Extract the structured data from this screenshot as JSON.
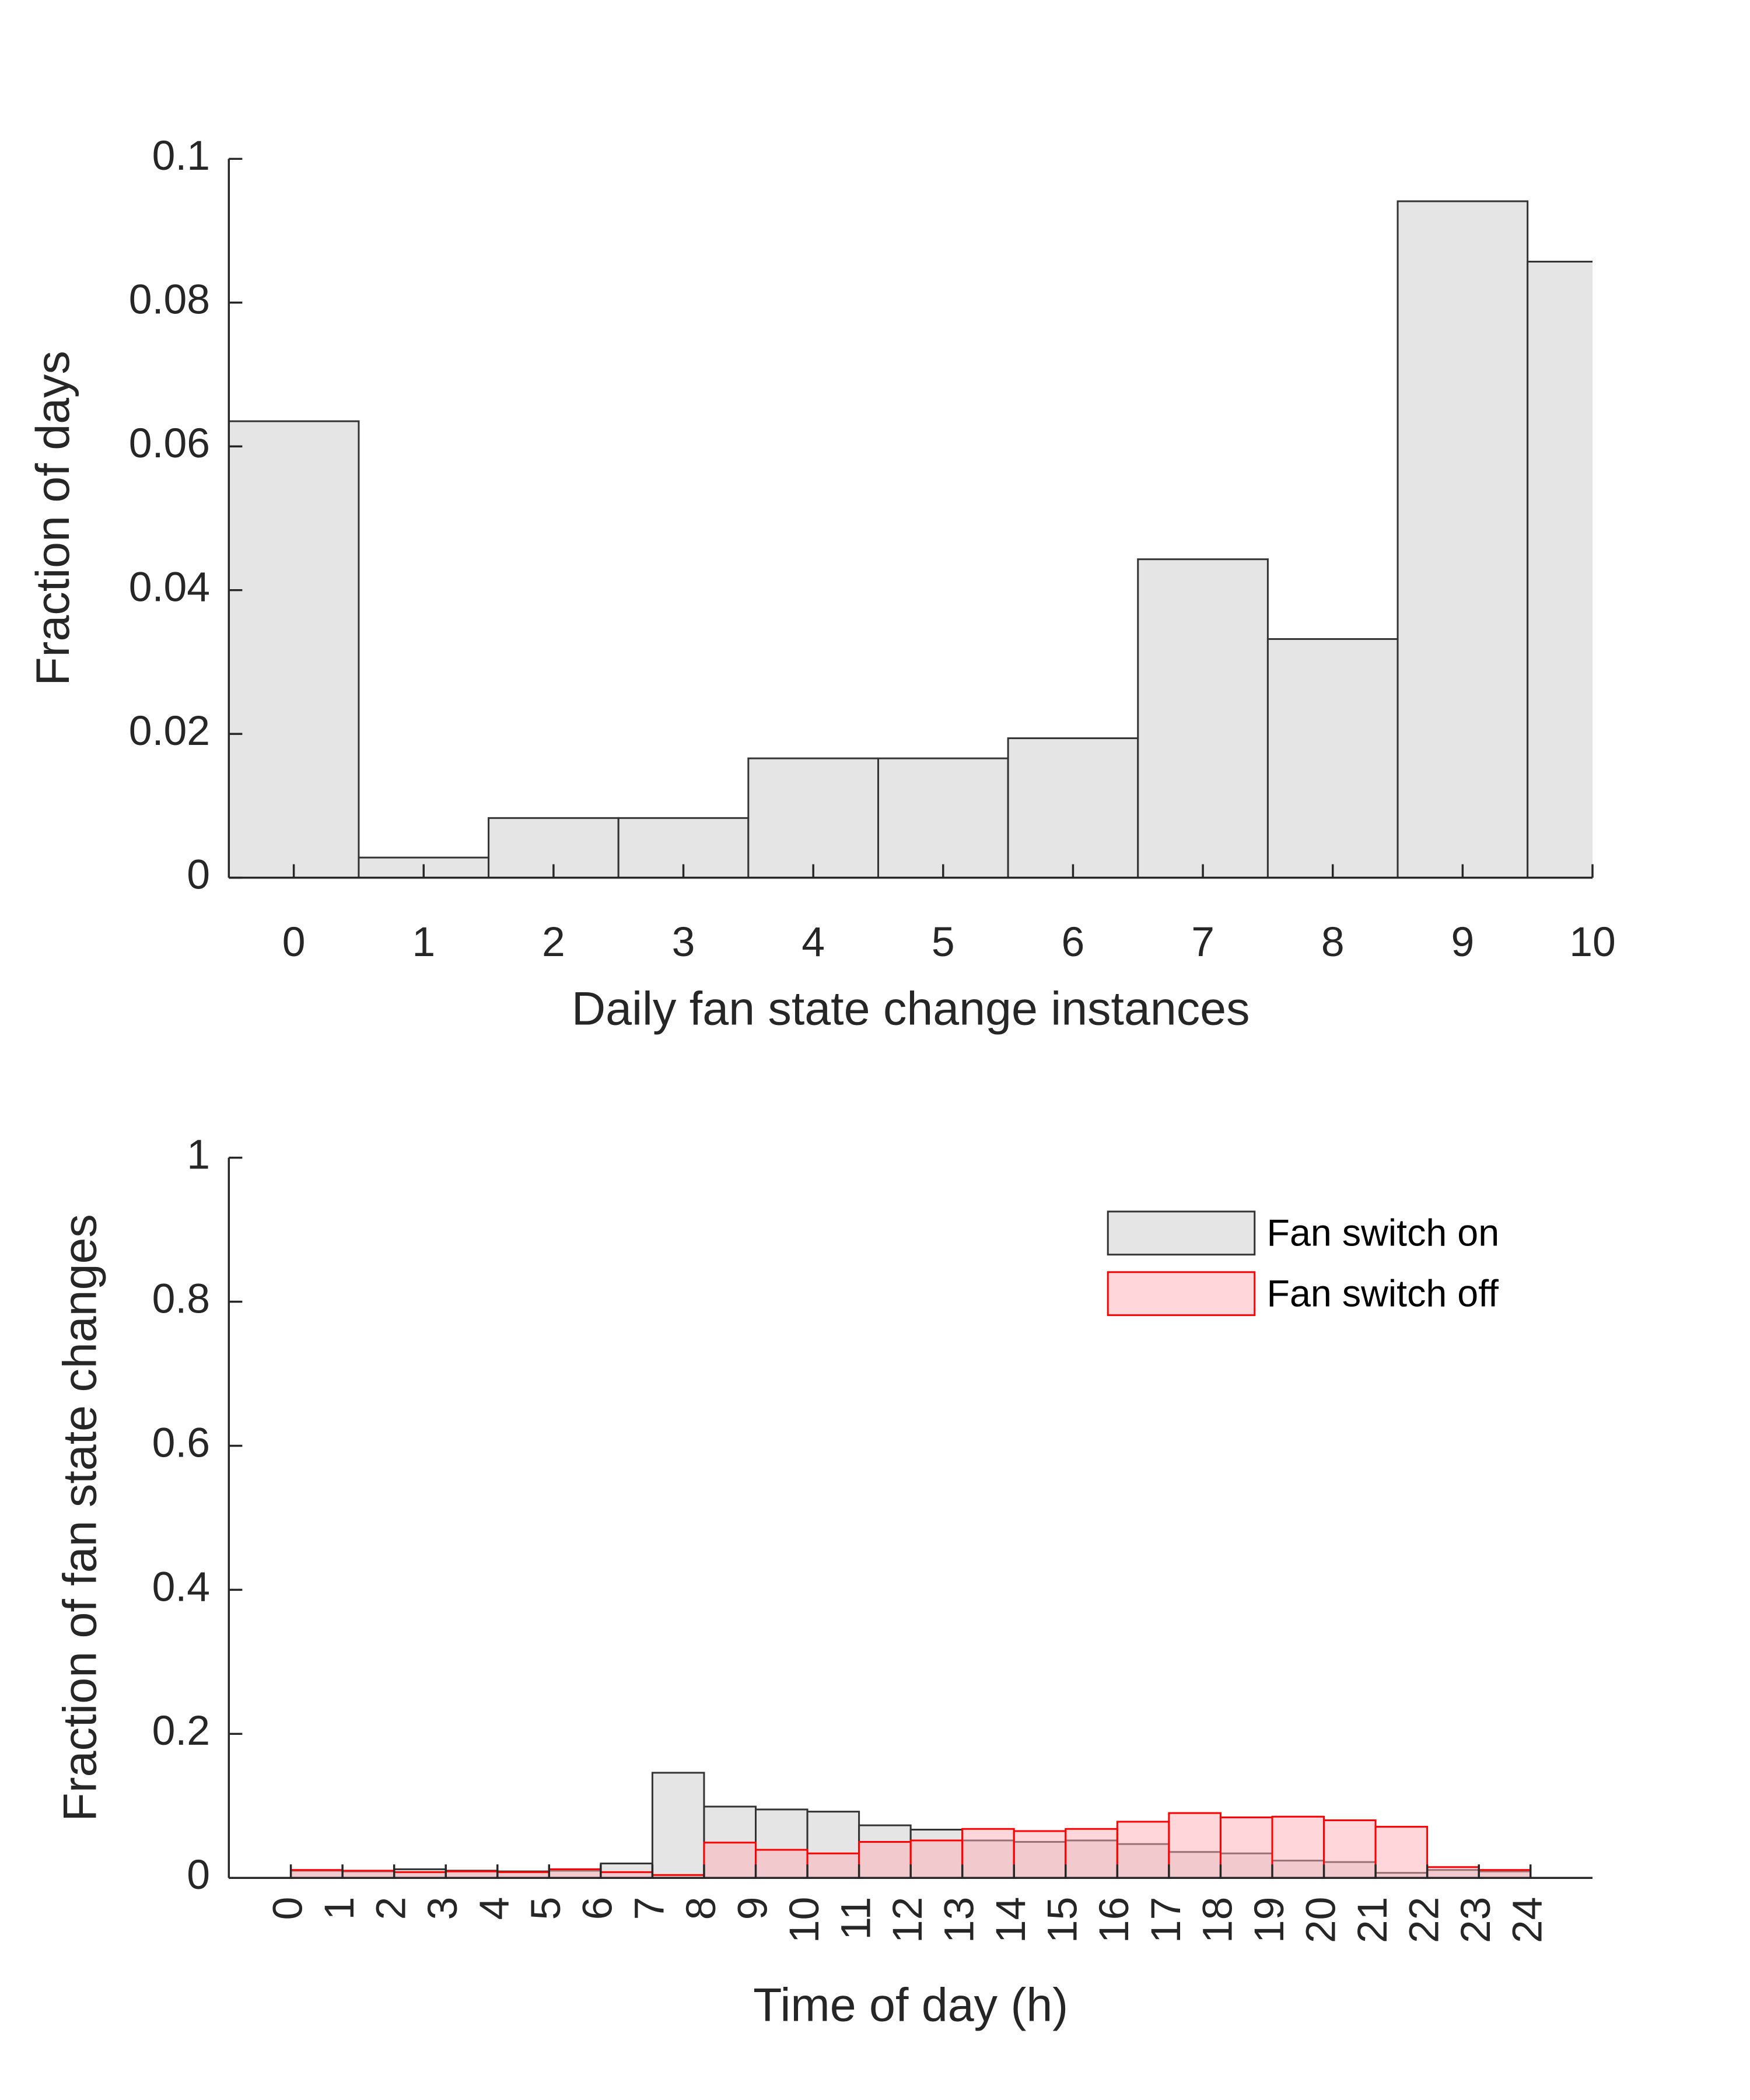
{
  "chart_data": [
    {
      "type": "histogram",
      "xlabel": "Daily fan state change instances",
      "ylabel": "Fraction of days",
      "bins": [
        -0.5,
        0.5,
        1.5,
        2.5,
        3.5,
        4.5,
        5.5,
        6.5,
        7.5,
        8.5,
        9.5,
        10.5
      ],
      "values": [
        0.0635,
        0.0028,
        0.0083,
        0.0083,
        0.0166,
        0.0166,
        0.0194,
        0.0443,
        0.0332,
        0.0941,
        0.0857
      ],
      "color": "#e5e5e5",
      "edgecolor": "#333333",
      "xlim": [
        -0.5,
        10
      ],
      "xticks": [
        0,
        1,
        2,
        3,
        4,
        5,
        6,
        7,
        8,
        9,
        10
      ],
      "ylim": [
        0,
        0.1
      ],
      "yticks": [
        0,
        0.02,
        0.04,
        0.06,
        0.08,
        0.1
      ],
      "grid": false
    },
    {
      "type": "histogram",
      "xlabel": "Time of day (h)",
      "ylabel": "Fraction of fan state changes",
      "bins": [
        0,
        1,
        2,
        3,
        4,
        5,
        6,
        7,
        8,
        9,
        10,
        11,
        12,
        13,
        14,
        15,
        16,
        17,
        18,
        19,
        20,
        21,
        22,
        23,
        24
      ],
      "series": [
        {
          "name": "Fan switch on",
          "color": "#cccccc",
          "edgecolor": "#333333",
          "values": [
            0.01,
            0.009,
            0.012,
            0.01,
            0.009,
            0.01,
            0.02,
            0.146,
            0.099,
            0.095,
            0.092,
            0.073,
            0.067,
            0.052,
            0.05,
            0.052,
            0.047,
            0.036,
            0.034,
            0.024,
            0.022,
            0.007,
            0.011,
            0.009
          ]
        },
        {
          "name": "Fan switch off",
          "color": "#ffb0b8",
          "edgecolor": "#ff0000",
          "values": [
            0.011,
            0.01,
            0.008,
            0.009,
            0.008,
            0.012,
            0.008,
            0.004,
            0.049,
            0.039,
            0.034,
            0.05,
            0.052,
            0.068,
            0.065,
            0.068,
            0.078,
            0.09,
            0.084,
            0.085,
            0.08,
            0.071,
            0.015,
            0.011
          ]
        }
      ],
      "xlim": [
        -1.2,
        25.2
      ],
      "xticks": [
        0,
        1,
        2,
        3,
        4,
        5,
        6,
        7,
        8,
        9,
        10,
        11,
        12,
        13,
        14,
        15,
        16,
        17,
        18,
        19,
        20,
        21,
        22,
        23,
        24
      ],
      "xtick_rotation": 90,
      "ylim": [
        0,
        1
      ],
      "yticks": [
        0,
        0.2,
        0.4,
        0.6,
        0.8,
        1
      ],
      "legend": "upper right",
      "grid": false
    }
  ]
}
